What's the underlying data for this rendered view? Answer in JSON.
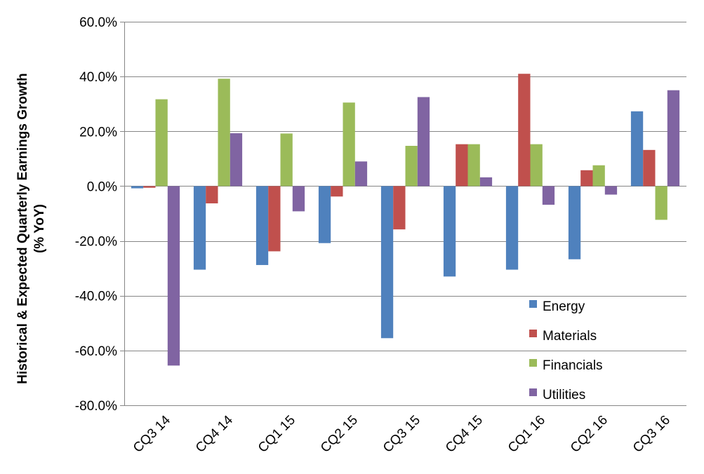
{
  "chart_data": {
    "type": "bar",
    "title": "",
    "ylabel_line1": "Historical & Expected Quarterly Earnings Growth",
    "ylabel_line2": "(% YoY)",
    "xlabel": "",
    "categories": [
      "CQ3 14",
      "CQ4 14",
      "CQ1 15",
      "CQ2 15",
      "CQ3 15",
      "CQ4 15",
      "CQ1 16",
      "CQ2 16",
      "CQ3 16"
    ],
    "ylim": [
      -80,
      60
    ],
    "yticks": [
      60,
      40,
      20,
      0,
      -20,
      -40,
      -60,
      -80
    ],
    "ytick_labels": [
      "60.0%",
      "40.0%",
      "20.0%",
      "0.0%",
      "-20.0%",
      "-40.0%",
      "-60.0%",
      "-80.0%"
    ],
    "grid": true,
    "legend_position": "lower-right",
    "series": [
      {
        "name": "Energy",
        "color": "#4F81BD",
        "values": [
          -0.8,
          -30.5,
          -28.8,
          -20.8,
          -55.5,
          -33.0,
          -30.5,
          -26.7,
          27.3
        ]
      },
      {
        "name": "Materials",
        "color": "#C0504D",
        "values": [
          -0.6,
          -6.3,
          -23.8,
          -3.8,
          -15.8,
          15.3,
          41.0,
          5.8,
          13.2
        ]
      },
      {
        "name": "Financials",
        "color": "#9BBB59",
        "values": [
          31.7,
          39.2,
          19.2,
          30.5,
          14.7,
          15.3,
          15.3,
          7.6,
          -12.3
        ]
      },
      {
        "name": "Utilities",
        "color": "#8064A2",
        "values": [
          -65.5,
          19.3,
          -9.2,
          9.0,
          32.5,
          3.2,
          -6.8,
          -3.1,
          35.0
        ]
      }
    ]
  }
}
